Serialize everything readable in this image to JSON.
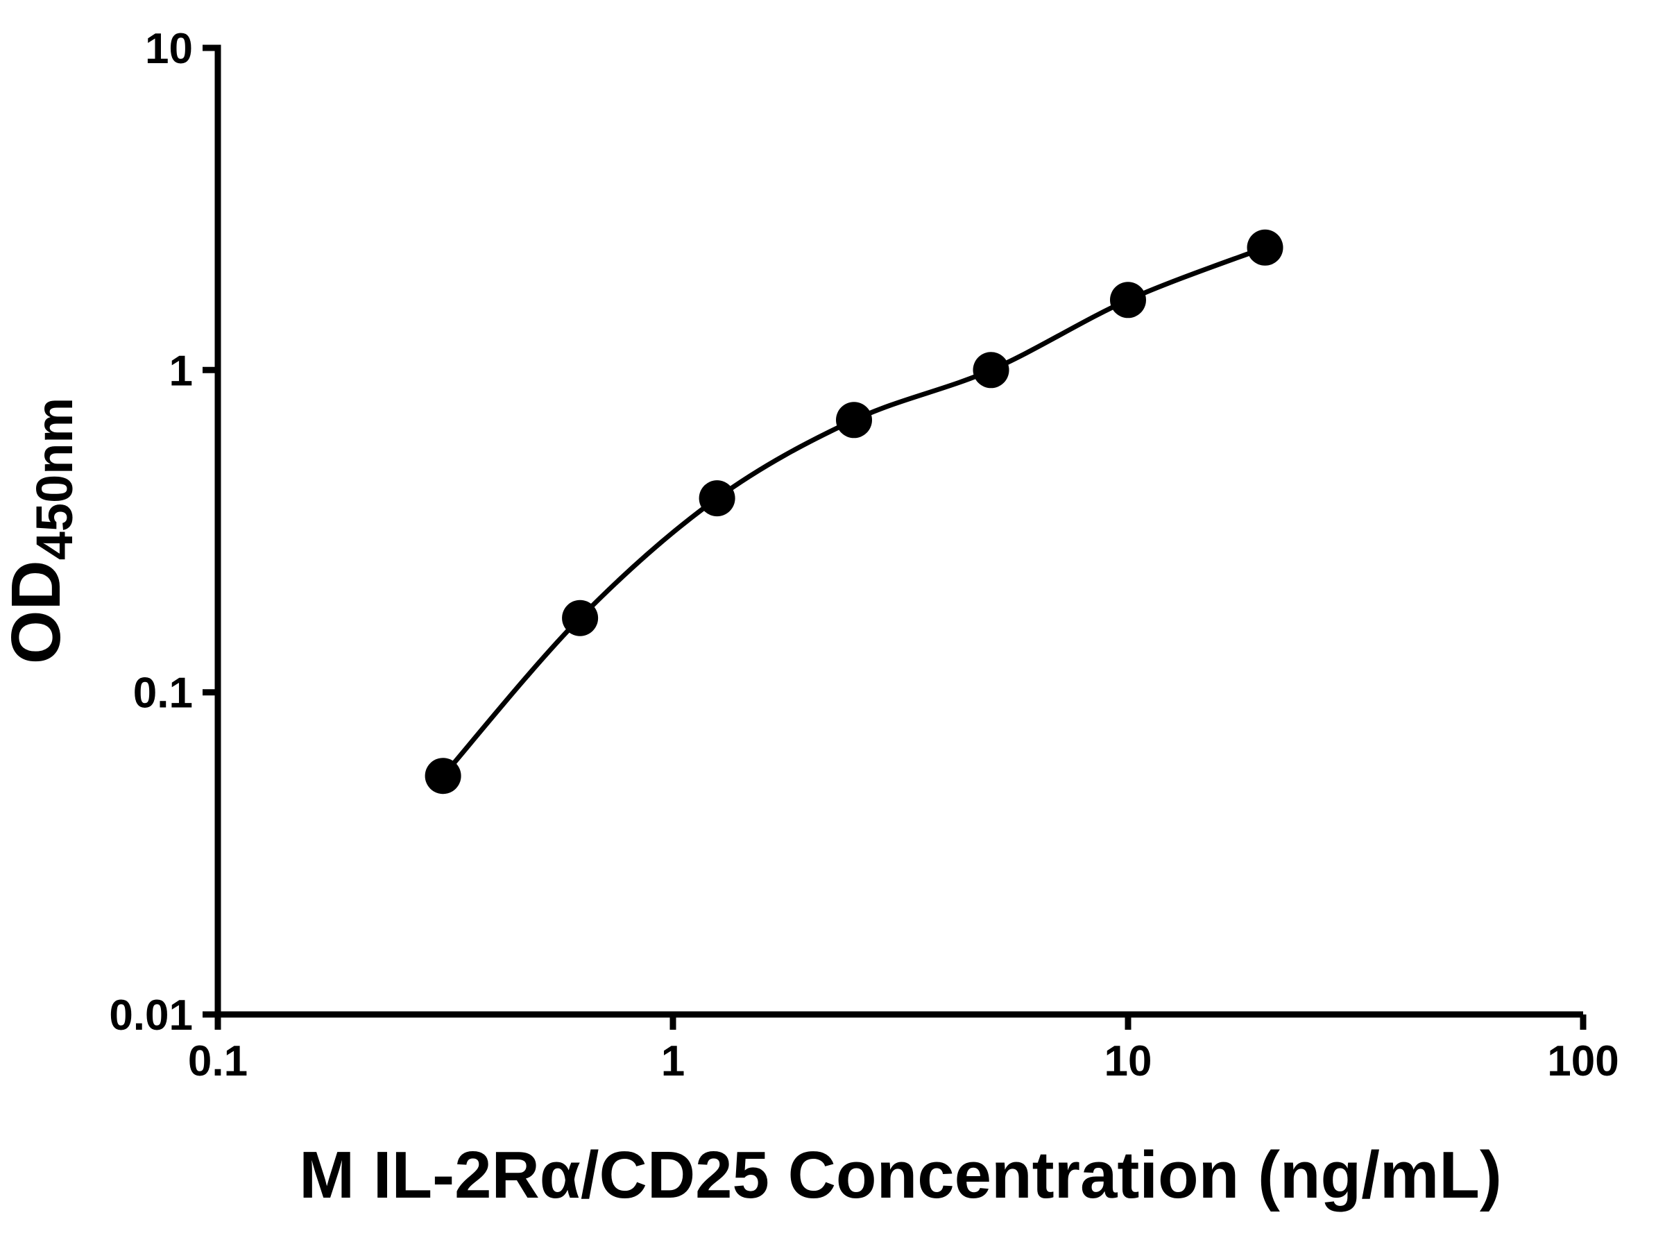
{
  "chart_data": {
    "type": "scatter",
    "title": "",
    "xlabel": "M IL-2Rα/CD25 Concentration (ng/mL)",
    "ylabel_main": "OD",
    "ylabel_sub": "450nm",
    "x_scale": "log",
    "y_scale": "log",
    "xlim": [
      0.1,
      100
    ],
    "ylim": [
      0.01,
      10
    ],
    "grid": false,
    "legend": false,
    "x_ticks": [
      {
        "value": 0.1,
        "label": "0.1"
      },
      {
        "value": 1,
        "label": "1"
      },
      {
        "value": 10,
        "label": "10"
      },
      {
        "value": 100,
        "label": "100"
      }
    ],
    "y_ticks": [
      {
        "value": 0.01,
        "label": "0.01"
      },
      {
        "value": 0.1,
        "label": "0.1"
      },
      {
        "value": 1,
        "label": "1"
      },
      {
        "value": 10,
        "label": "10"
      }
    ],
    "series": [
      {
        "name": "standard-curve",
        "x": [
          0.3125,
          0.625,
          1.25,
          2.5,
          5,
          10,
          20
        ],
        "y": [
          0.055,
          0.17,
          0.4,
          0.7,
          1.0,
          1.65,
          2.4
        ],
        "marker": "circle",
        "marker_color": "#000000",
        "line_color": "#000000"
      }
    ]
  },
  "colors": {
    "background": "#ffffff",
    "axis": "#000000",
    "text": "#000000"
  }
}
